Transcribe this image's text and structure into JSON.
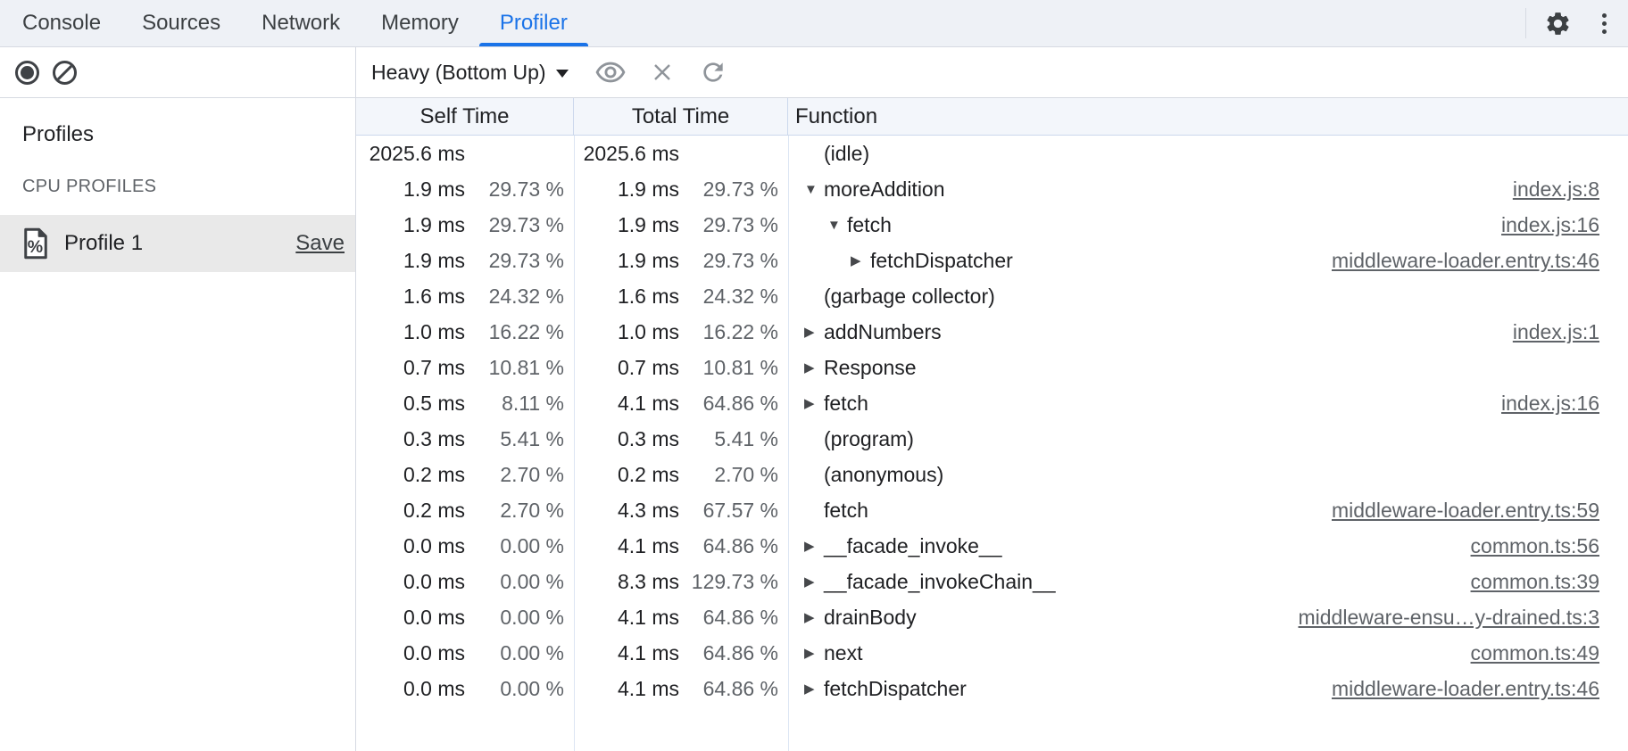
{
  "tabs": [
    {
      "label": "Console",
      "active": false
    },
    {
      "label": "Sources",
      "active": false
    },
    {
      "label": "Network",
      "active": false
    },
    {
      "label": "Memory",
      "active": false
    },
    {
      "label": "Profiler",
      "active": true
    }
  ],
  "toolbar": {
    "view_select_value": "Heavy (Bottom Up)"
  },
  "sidebar": {
    "heading": "Profiles",
    "section_title": "CPU PROFILES",
    "profiles": [
      {
        "name": "Profile 1",
        "action_label": "Save",
        "selected": true
      }
    ]
  },
  "icons": {
    "expand_down": "▼",
    "expand_right": "▶",
    "percent_glyph": "%"
  },
  "table": {
    "columns": [
      {
        "label": "Self Time"
      },
      {
        "label": "Total Time"
      },
      {
        "label": "Function"
      }
    ],
    "rows": [
      {
        "self_ms": "2025.6 ms",
        "self_pct": "",
        "total_ms": "2025.6 ms",
        "total_pct": "",
        "function": "(idle)",
        "indent": 0,
        "expand": "none",
        "link": ""
      },
      {
        "self_ms": "1.9 ms",
        "self_pct": "29.73 %",
        "total_ms": "1.9 ms",
        "total_pct": "29.73 %",
        "function": "moreAddition",
        "indent": 0,
        "expand": "down",
        "link": "index.js:8"
      },
      {
        "self_ms": "1.9 ms",
        "self_pct": "29.73 %",
        "total_ms": "1.9 ms",
        "total_pct": "29.73 %",
        "function": "fetch",
        "indent": 1,
        "expand": "down",
        "link": "index.js:16"
      },
      {
        "self_ms": "1.9 ms",
        "self_pct": "29.73 %",
        "total_ms": "1.9 ms",
        "total_pct": "29.73 %",
        "function": "fetchDispatcher",
        "indent": 2,
        "expand": "right",
        "link": "middleware-loader.entry.ts:46"
      },
      {
        "self_ms": "1.6 ms",
        "self_pct": "24.32 %",
        "total_ms": "1.6 ms",
        "total_pct": "24.32 %",
        "function": "(garbage collector)",
        "indent": 0,
        "expand": "none",
        "link": ""
      },
      {
        "self_ms": "1.0 ms",
        "self_pct": "16.22 %",
        "total_ms": "1.0 ms",
        "total_pct": "16.22 %",
        "function": "addNumbers",
        "indent": 0,
        "expand": "right",
        "link": "index.js:1"
      },
      {
        "self_ms": "0.7 ms",
        "self_pct": "10.81 %",
        "total_ms": "0.7 ms",
        "total_pct": "10.81 %",
        "function": "Response",
        "indent": 0,
        "expand": "right",
        "link": ""
      },
      {
        "self_ms": "0.5 ms",
        "self_pct": "8.11 %",
        "total_ms": "4.1 ms",
        "total_pct": "64.86 %",
        "function": "fetch",
        "indent": 0,
        "expand": "right",
        "link": "index.js:16"
      },
      {
        "self_ms": "0.3 ms",
        "self_pct": "5.41 %",
        "total_ms": "0.3 ms",
        "total_pct": "5.41 %",
        "function": "(program)",
        "indent": 0,
        "expand": "none",
        "link": ""
      },
      {
        "self_ms": "0.2 ms",
        "self_pct": "2.70 %",
        "total_ms": "0.2 ms",
        "total_pct": "2.70 %",
        "function": "(anonymous)",
        "indent": 0,
        "expand": "none",
        "link": ""
      },
      {
        "self_ms": "0.2 ms",
        "self_pct": "2.70 %",
        "total_ms": "4.3 ms",
        "total_pct": "67.57 %",
        "function": "fetch",
        "indent": 0,
        "expand": "none",
        "link": "middleware-loader.entry.ts:59"
      },
      {
        "self_ms": "0.0 ms",
        "self_pct": "0.00 %",
        "total_ms": "4.1 ms",
        "total_pct": "64.86 %",
        "function": "__facade_invoke__",
        "indent": 0,
        "expand": "right",
        "link": "common.ts:56"
      },
      {
        "self_ms": "0.0 ms",
        "self_pct": "0.00 %",
        "total_ms": "8.3 ms",
        "total_pct": "129.73 %",
        "function": "__facade_invokeChain__",
        "indent": 0,
        "expand": "right",
        "link": "common.ts:39"
      },
      {
        "self_ms": "0.0 ms",
        "self_pct": "0.00 %",
        "total_ms": "4.1 ms",
        "total_pct": "64.86 %",
        "function": "drainBody",
        "indent": 0,
        "expand": "right",
        "link": "middleware-ensu…y-drained.ts:3"
      },
      {
        "self_ms": "0.0 ms",
        "self_pct": "0.00 %",
        "total_ms": "4.1 ms",
        "total_pct": "64.86 %",
        "function": "next",
        "indent": 0,
        "expand": "right",
        "link": "common.ts:49"
      },
      {
        "self_ms": "0.0 ms",
        "self_pct": "0.00 %",
        "total_ms": "4.1 ms",
        "total_pct": "64.86 %",
        "function": "fetchDispatcher",
        "indent": 0,
        "expand": "right",
        "link": "middleware-loader.entry.ts:46"
      }
    ]
  },
  "colors": {
    "accent_blue": "#1a73e8",
    "tabbar_bg": "#eef1f6",
    "header_bg": "#f3f6fb",
    "grid_border_blue": "#ccd8ec",
    "selection_gray": "#e9e9e9",
    "link_gray": "#5f6368",
    "icon_dark": "#3f4246",
    "icon_gray": "#8f949a"
  }
}
